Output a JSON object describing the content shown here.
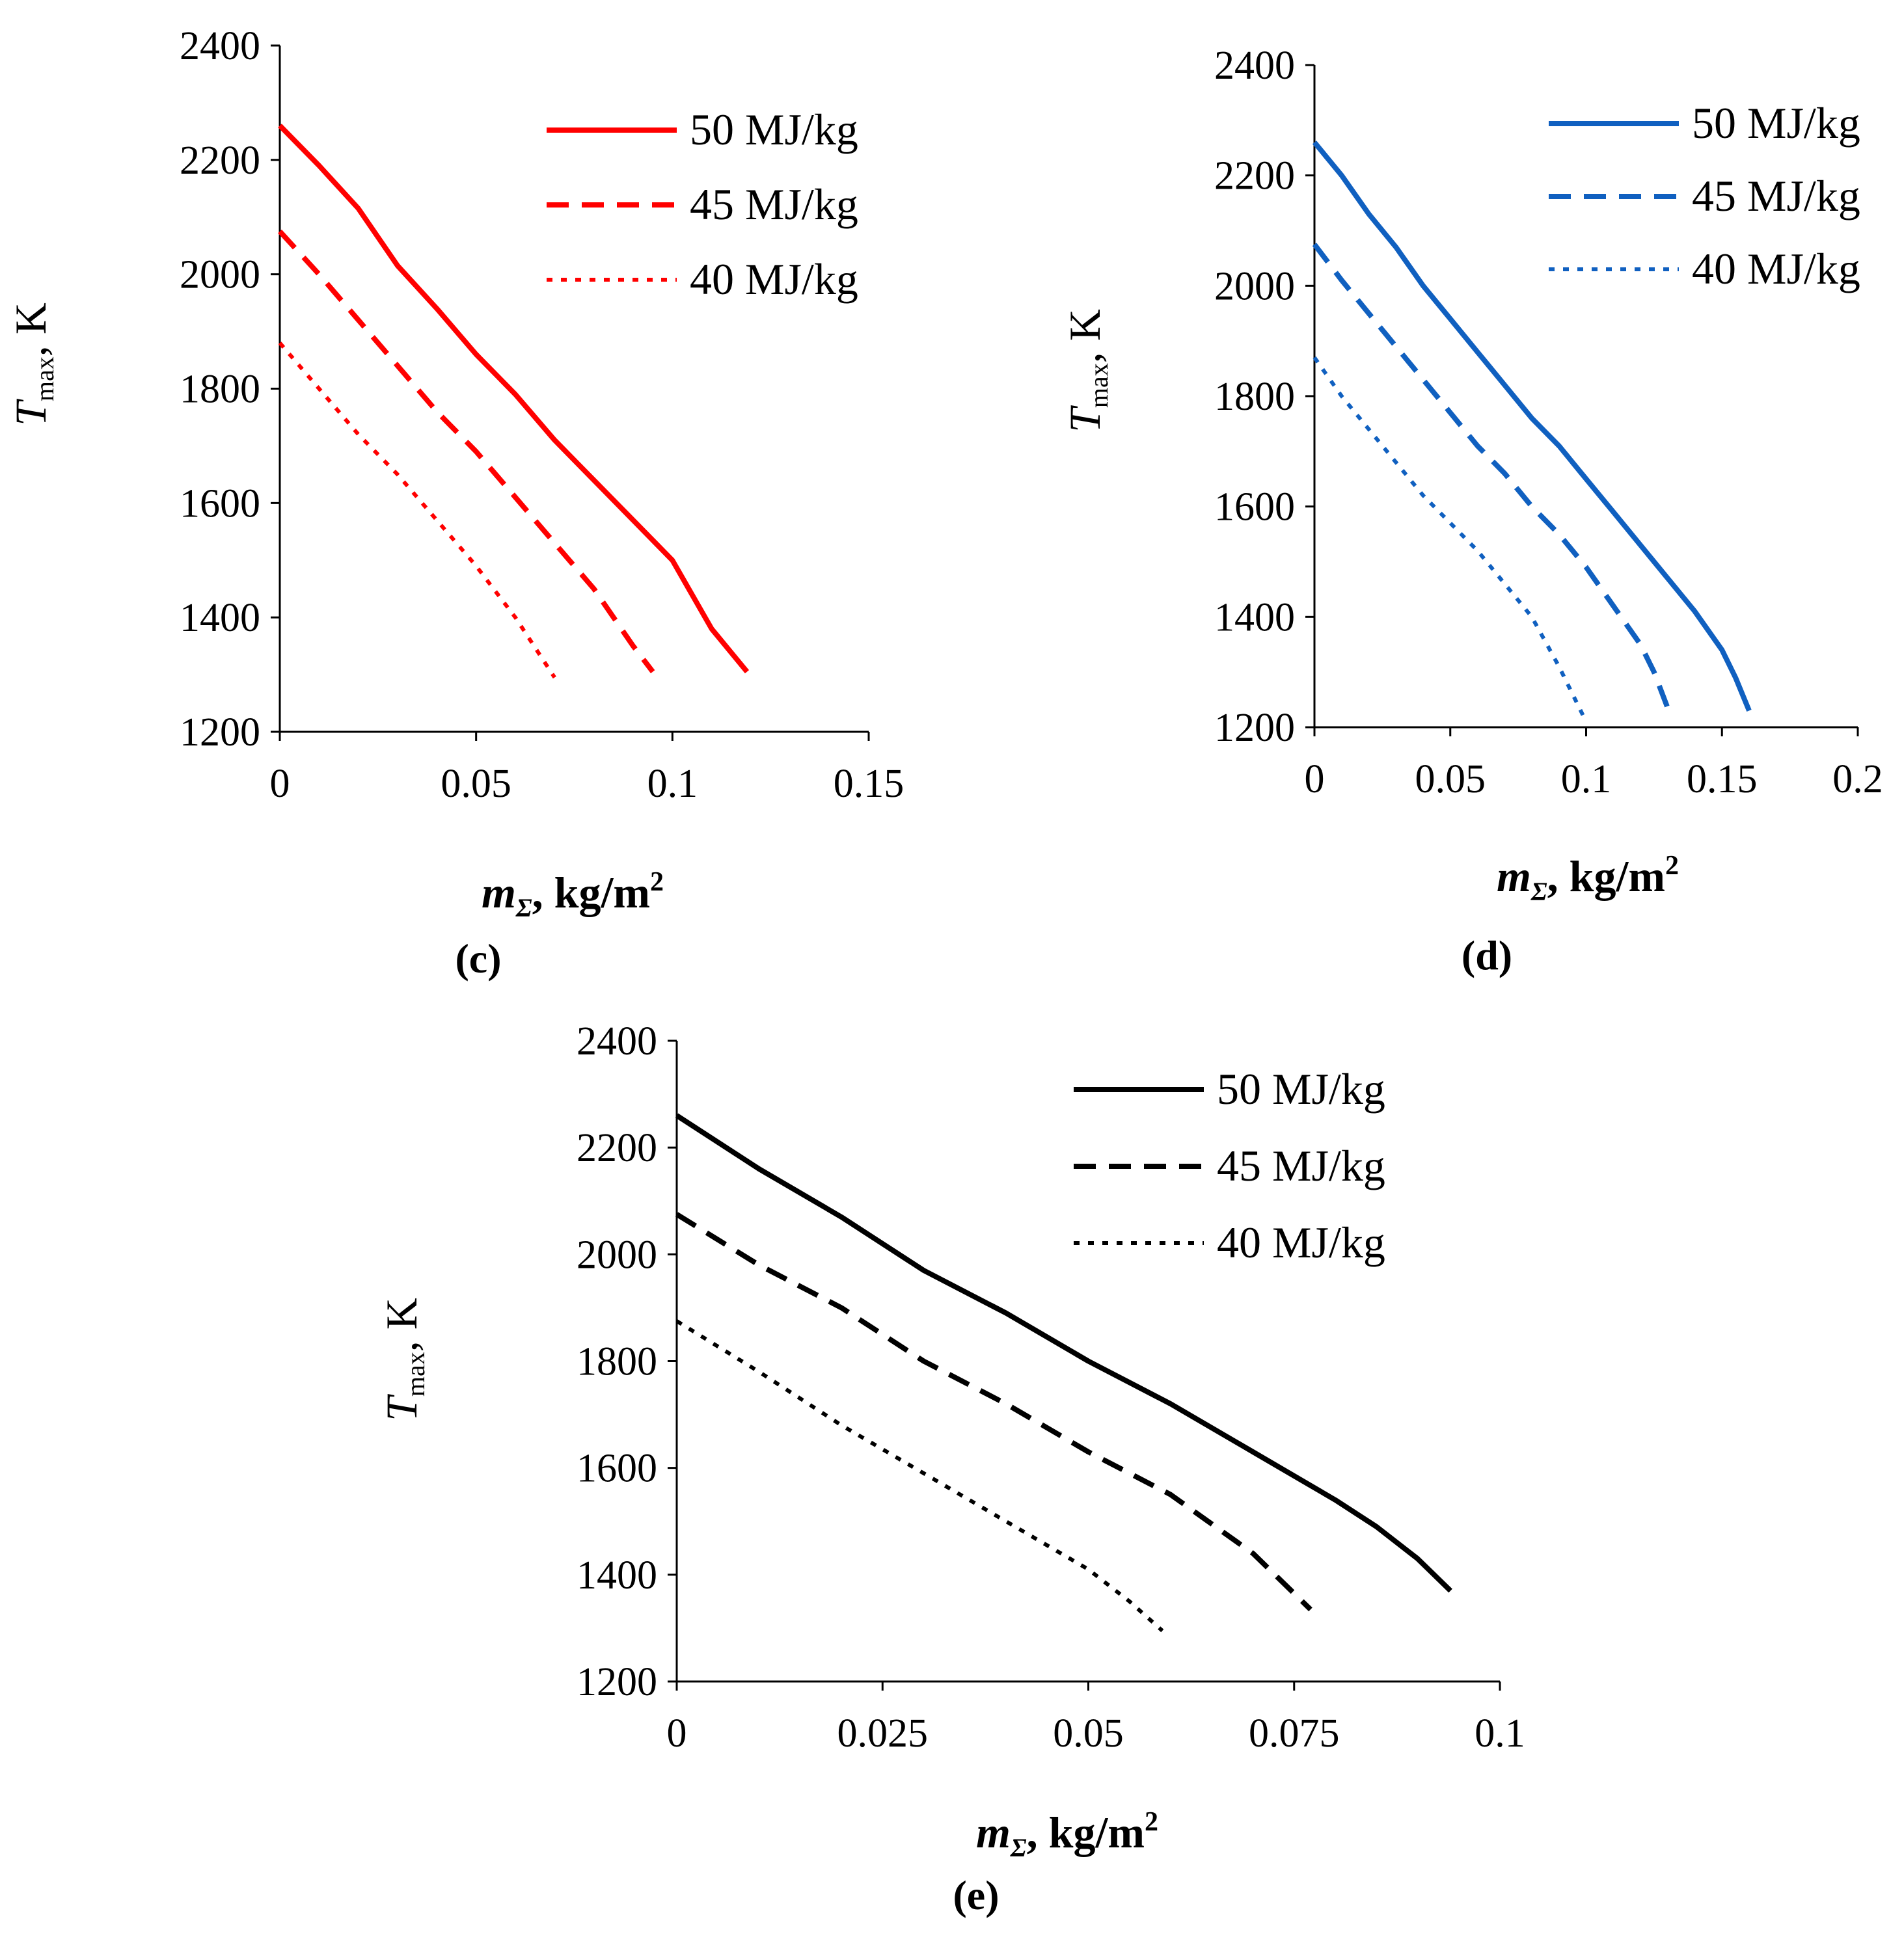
{
  "chart_data": [
    {
      "type": "line",
      "panel_label": "(c)",
      "color": "#ff0000",
      "ylabel": {
        "var": "T",
        "sub": "max",
        "unit": ", K"
      },
      "xlabel": {
        "var": "m",
        "sub": "Σ",
        "unit": ", kg/m",
        "sup": "2"
      },
      "xlim": [
        0,
        0.15
      ],
      "ylim": [
        1200,
        2400
      ],
      "xticks": [
        0,
        0.05,
        0.1,
        0.15
      ],
      "xtick_labels": [
        "0",
        "0.05",
        "0.1",
        "0.15"
      ],
      "yticks": [
        1200,
        1400,
        1600,
        1800,
        2000,
        2200,
        2400
      ],
      "ytick_labels": [
        "1200",
        "1400",
        "1600",
        "1800",
        "2000",
        "2200",
        "2400"
      ],
      "legend_position": "top-right",
      "series": [
        {
          "name": "50 MJ/kg",
          "style": "solid",
          "x": [
            0,
            0.01,
            0.02,
            0.03,
            0.04,
            0.05,
            0.06,
            0.07,
            0.08,
            0.09,
            0.1,
            0.11,
            0.119
          ],
          "y": [
            2260,
            2190,
            2115,
            2015,
            1940,
            1860,
            1790,
            1710,
            1640,
            1570,
            1500,
            1380,
            1305
          ]
        },
        {
          "name": "45 MJ/kg",
          "style": "dashed",
          "x": [
            0,
            0.01,
            0.02,
            0.03,
            0.04,
            0.05,
            0.06,
            0.07,
            0.08,
            0.09,
            0.095
          ],
          "y": [
            2075,
            2000,
            1920,
            1840,
            1760,
            1690,
            1610,
            1530,
            1450,
            1350,
            1305
          ]
        },
        {
          "name": "40 MJ/kg",
          "style": "dotted",
          "x": [
            0,
            0.01,
            0.02,
            0.03,
            0.04,
            0.05,
            0.06,
            0.07
          ],
          "y": [
            1880,
            1800,
            1720,
            1650,
            1570,
            1490,
            1400,
            1295
          ]
        }
      ]
    },
    {
      "type": "line",
      "panel_label": "(d)",
      "color": "#1060c0",
      "ylabel": {
        "var": "T",
        "sub": "max",
        "unit": ", K"
      },
      "xlabel": {
        "var": "m",
        "sub": "Σ",
        "unit": ", kg/m",
        "sup": "2"
      },
      "xlim": [
        0,
        0.2
      ],
      "ylim": [
        1200,
        2400
      ],
      "xticks": [
        0,
        0.05,
        0.1,
        0.15,
        0.2
      ],
      "xtick_labels": [
        "0",
        "0.05",
        "0.1",
        "0.15",
        "0.2"
      ],
      "yticks": [
        1200,
        1400,
        1600,
        1800,
        2000,
        2200,
        2400
      ],
      "ytick_labels": [
        "1200",
        "1400",
        "1600",
        "1800",
        "2000",
        "2200",
        "2400"
      ],
      "legend_position": "top-right",
      "series": [
        {
          "name": "50 MJ/kg",
          "style": "solid",
          "x": [
            0,
            0.01,
            0.02,
            0.03,
            0.04,
            0.05,
            0.06,
            0.07,
            0.08,
            0.09,
            0.1,
            0.11,
            0.12,
            0.13,
            0.14,
            0.15,
            0.155,
            0.16
          ],
          "y": [
            2260,
            2200,
            2130,
            2070,
            2000,
            1940,
            1880,
            1820,
            1760,
            1710,
            1650,
            1590,
            1530,
            1470,
            1410,
            1340,
            1290,
            1230
          ]
        },
        {
          "name": "45 MJ/kg",
          "style": "dashed",
          "x": [
            0,
            0.01,
            0.02,
            0.03,
            0.04,
            0.05,
            0.06,
            0.07,
            0.08,
            0.09,
            0.1,
            0.11,
            0.12,
            0.125,
            0.13
          ],
          "y": [
            2075,
            2010,
            1950,
            1890,
            1830,
            1770,
            1710,
            1660,
            1600,
            1550,
            1490,
            1420,
            1350,
            1300,
            1235
          ]
        },
        {
          "name": "40 MJ/kg",
          "style": "dotted",
          "x": [
            0,
            0.01,
            0.02,
            0.03,
            0.04,
            0.05,
            0.06,
            0.07,
            0.08,
            0.09,
            0.1
          ],
          "y": [
            1870,
            1800,
            1740,
            1680,
            1620,
            1570,
            1520,
            1460,
            1400,
            1310,
            1210
          ]
        }
      ]
    },
    {
      "type": "line",
      "panel_label": "(e)",
      "color": "#000000",
      "ylabel": {
        "var": "T",
        "sub": "max",
        "unit": ", K"
      },
      "xlabel": {
        "var": "m",
        "sub": "Σ",
        "unit": ", kg/m",
        "sup": "2"
      },
      "xlim": [
        0,
        0.1
      ],
      "ylim": [
        1200,
        2400
      ],
      "xticks": [
        0,
        0.025,
        0.05,
        0.075,
        0.1
      ],
      "xtick_labels": [
        "0",
        "0.025",
        "0.05",
        "0.075",
        "0.1"
      ],
      "yticks": [
        1200,
        1400,
        1600,
        1800,
        2000,
        2200,
        2400
      ],
      "ytick_labels": [
        "1200",
        "1400",
        "1600",
        "1800",
        "2000",
        "2200",
        "2400"
      ],
      "legend_position": "top-right",
      "series": [
        {
          "name": "50 MJ/kg",
          "style": "solid",
          "x": [
            0,
            0.01,
            0.02,
            0.03,
            0.04,
            0.05,
            0.06,
            0.07,
            0.08,
            0.085,
            0.09,
            0.094
          ],
          "y": [
            2260,
            2160,
            2070,
            1970,
            1890,
            1800,
            1720,
            1630,
            1540,
            1490,
            1430,
            1370
          ]
        },
        {
          "name": "45 MJ/kg",
          "style": "dashed",
          "x": [
            0,
            0.01,
            0.02,
            0.03,
            0.04,
            0.05,
            0.06,
            0.07,
            0.077
          ],
          "y": [
            2075,
            1980,
            1900,
            1800,
            1720,
            1630,
            1550,
            1440,
            1335
          ]
        },
        {
          "name": "40 MJ/kg",
          "style": "dotted",
          "x": [
            0,
            0.01,
            0.02,
            0.03,
            0.04,
            0.05,
            0.055,
            0.059
          ],
          "y": [
            1875,
            1780,
            1680,
            1590,
            1500,
            1410,
            1350,
            1295
          ]
        }
      ]
    }
  ]
}
